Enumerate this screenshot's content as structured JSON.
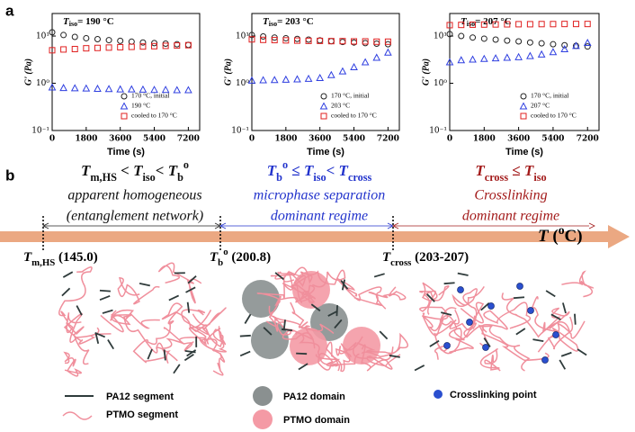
{
  "panel_a": {
    "label": "a"
  },
  "chart_data": [
    {
      "type": "scatter",
      "title_symbol": "T",
      "title_subscript": "iso",
      "title": "= 190 °C",
      "xlabel": "Time (s)",
      "ylabel": "G' (Pa)",
      "x": [
        0,
        600,
        1200,
        1800,
        2400,
        3000,
        3600,
        4200,
        4800,
        5400,
        6000,
        6600,
        7200
      ],
      "xlim": [
        0,
        7800
      ],
      "xticks": [
        0,
        1800,
        3600,
        5400,
        7200
      ],
      "ylim": [
        0.1,
        30
      ],
      "log_scale": true,
      "yticks": [
        {
          "value": 0.1,
          "label": "10⁻¹"
        },
        {
          "value": 1,
          "label": "10⁰"
        },
        {
          "value": 10,
          "label": "10¹"
        }
      ],
      "legend": "lower right",
      "series": [
        {
          "name": "170 °C, initial",
          "color": "#222222",
          "marker": "circle",
          "values": [
            12,
            10.5,
            9.6,
            9,
            8.6,
            8.2,
            7.9,
            7.6,
            7.3,
            7.1,
            6.9,
            6.7,
            6.5
          ]
        },
        {
          "name": "190 °C",
          "color": "#2f3fe0",
          "marker": "triangle",
          "values": [
            0.82,
            0.8,
            0.79,
            0.78,
            0.77,
            0.76,
            0.75,
            0.75,
            0.74,
            0.73,
            0.73,
            0.72,
            0.72
          ]
        },
        {
          "name": "cooled to 170 °C",
          "color": "#e02020",
          "marker": "square",
          "values": [
            5,
            5.2,
            5.3,
            5.5,
            5.6,
            5.7,
            5.8,
            5.9,
            6,
            6.1,
            6.2,
            6.3,
            6.4
          ]
        }
      ]
    },
    {
      "type": "scatter",
      "title_symbol": "T",
      "title_subscript": "iso",
      "title": "= 203 °C",
      "xlabel": "Time (s)",
      "ylabel": "G' (Pa)",
      "x": [
        0,
        600,
        1200,
        1800,
        2400,
        3000,
        3600,
        4200,
        4800,
        5400,
        6000,
        6600,
        7200
      ],
      "xlim": [
        0,
        7800
      ],
      "xticks": [
        0,
        1800,
        3600,
        5400,
        7200
      ],
      "ylim": [
        0.1,
        30
      ],
      "log_scale": true,
      "yticks": [
        {
          "value": 0.1,
          "label": "10⁻¹"
        },
        {
          "value": 1,
          "label": "10⁰"
        },
        {
          "value": 10,
          "label": "10¹"
        }
      ],
      "legend": "lower right",
      "series": [
        {
          "name": "170 °C, initial",
          "color": "#222222",
          "marker": "circle",
          "values": [
            10.5,
            9.8,
            9.3,
            9,
            8.7,
            8.4,
            8.1,
            7.8,
            7.5,
            7.3,
            7.1,
            6.9,
            6.7
          ]
        },
        {
          "name": "203 °C",
          "color": "#2f3fe0",
          "marker": "triangle",
          "values": [
            1.15,
            1.17,
            1.18,
            1.2,
            1.22,
            1.25,
            1.3,
            1.5,
            1.8,
            2.2,
            2.8,
            3.5,
            4.5
          ]
        },
        {
          "name": "cooled to 170 °C",
          "color": "#e02020",
          "marker": "square",
          "values": [
            8.5,
            8.3,
            8.2,
            8.1,
            8,
            7.9,
            7.9,
            7.8,
            7.8,
            7.7,
            7.7,
            7.6,
            7.6
          ]
        }
      ]
    },
    {
      "type": "scatter",
      "title_symbol": "T",
      "title_subscript": "iso",
      "title": "= 207 °C",
      "xlabel": "Time (s)",
      "ylabel": "G' (Pa)",
      "x": [
        0,
        600,
        1200,
        1800,
        2400,
        3000,
        3600,
        4200,
        4800,
        5400,
        6000,
        6600,
        7200
      ],
      "xlim": [
        0,
        7800
      ],
      "xticks": [
        0,
        1800,
        3600,
        5400,
        7200
      ],
      "ylim": [
        0.1,
        30
      ],
      "log_scale": true,
      "yticks": [
        {
          "value": 0.1,
          "label": "10⁻¹"
        },
        {
          "value": 1,
          "label": "10⁰"
        },
        {
          "value": 10,
          "label": "10¹"
        }
      ],
      "legend": "lower right",
      "series": [
        {
          "name": "170 °C, initial",
          "color": "#222222",
          "marker": "circle",
          "values": [
            11,
            10,
            9.3,
            8.8,
            8.4,
            8,
            7.7,
            7.3,
            7,
            6.7,
            6.4,
            6.2,
            6
          ]
        },
        {
          "name": "207 °C",
          "color": "#2f3fe0",
          "marker": "triangle",
          "values": [
            2.8,
            3.1,
            3.2,
            3.3,
            3.4,
            3.5,
            3.6,
            3.8,
            4.1,
            4.6,
            5.3,
            6.2,
            7.2
          ]
        },
        {
          "name": "cooled to 170 °C",
          "color": "#e02020",
          "marker": "square",
          "values": [
            17,
            17.2,
            17.4,
            17.5,
            17.6,
            17.7,
            17.8,
            17.8,
            17.9,
            17.9,
            18,
            18,
            18
          ]
        }
      ]
    }
  ],
  "panel_b": {
    "label": "b",
    "regions": [
      {
        "condition": [
          "T",
          "m,HS",
          " < ",
          "T",
          "iso",
          "< ",
          "T",
          "b",
          "o"
        ],
        "description": [
          "apparent homogeneous",
          "(entanglement network)"
        ]
      },
      {
        "condition": [
          "T",
          "b",
          "o",
          " ≤ ",
          "T",
          "iso",
          "< ",
          "T",
          "cross"
        ],
        "description": [
          "microphase separation",
          "dominant regime"
        ]
      },
      {
        "condition": [
          "T",
          "cross",
          " ≤ ",
          "T",
          "iso"
        ],
        "description": [
          "Crosslinking",
          "dominant regime"
        ]
      }
    ],
    "axis_label": [
      "T",
      " (",
      "o",
      "C)"
    ],
    "points": [
      {
        "symbol": [
          "T",
          "m,HS"
        ],
        "value": " (145.0)"
      },
      {
        "symbol": [
          "T",
          "b",
          "o"
        ],
        "value": " (200.8)"
      },
      {
        "symbol": [
          "T",
          "cross"
        ],
        "value": " (203-207)"
      }
    ],
    "legend": [
      "PA12 segment",
      "PTMO segment",
      "PA12 domain",
      "PTMO domain",
      "Crosslinking point"
    ]
  }
}
